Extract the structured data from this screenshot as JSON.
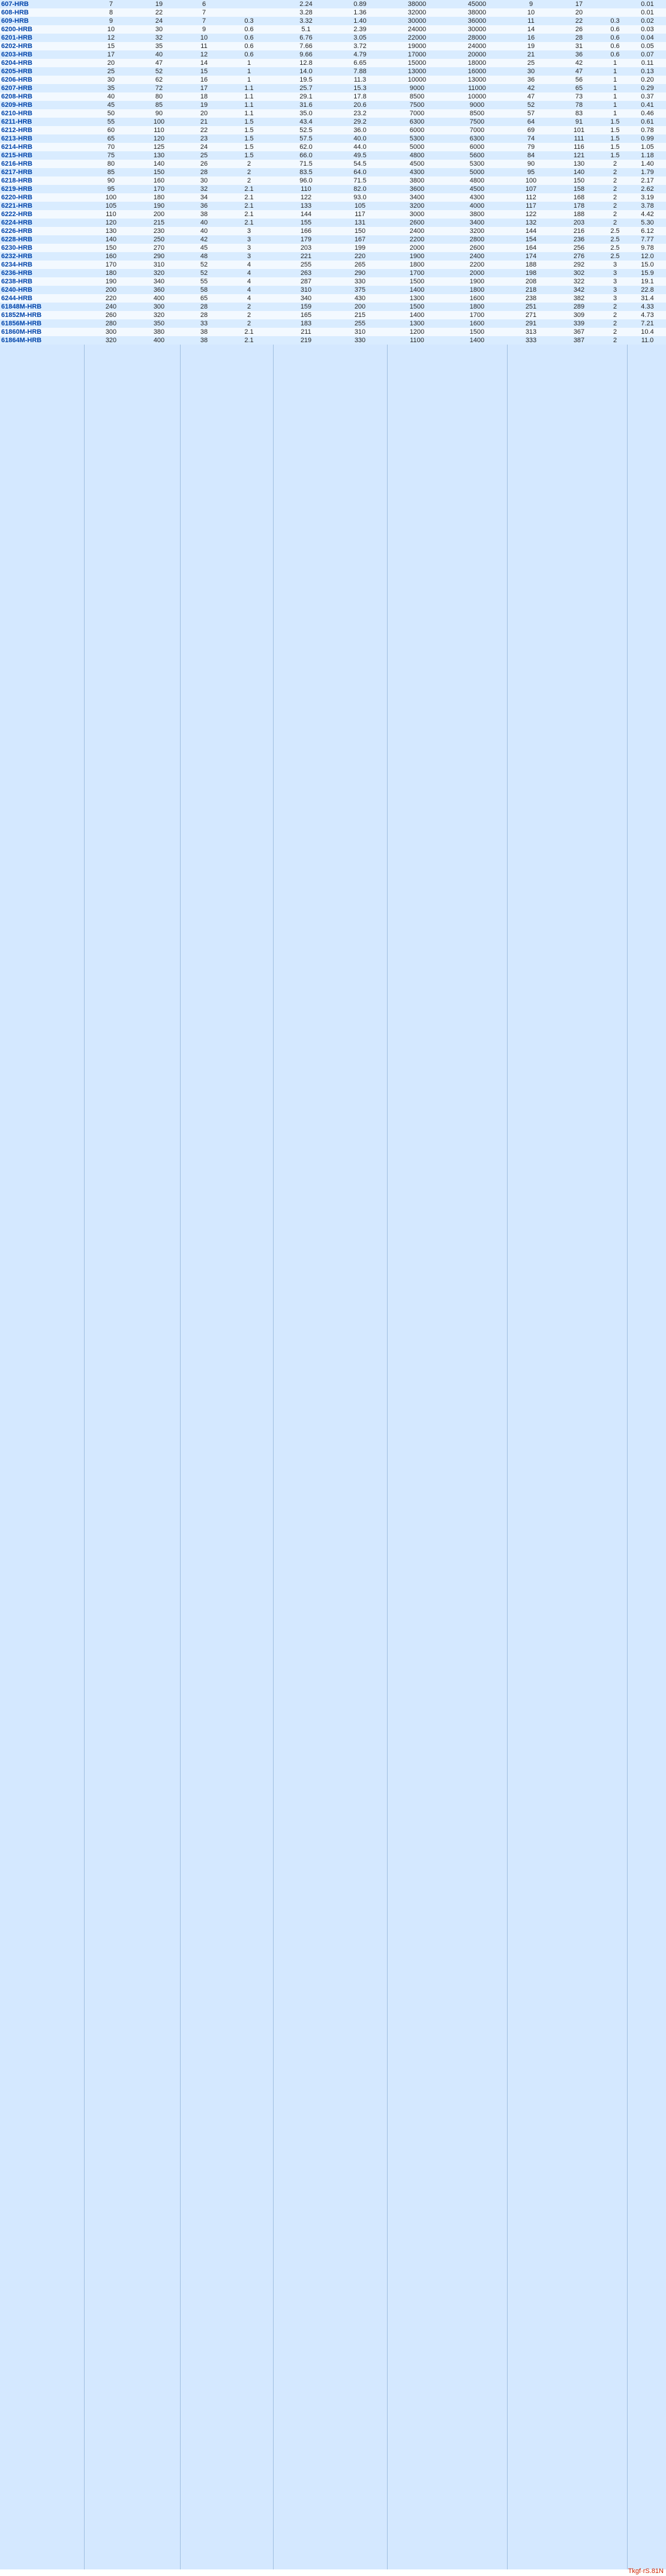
{
  "footer": {
    "watermark": "Tkgf·rS.81N"
  },
  "rows": [
    {
      "model": "607-HRB",
      "d": "7",
      "D": "19",
      "B": "6",
      "r": "",
      "Cr": "2.24",
      "Cor": "0.89",
      "grease": "38000",
      "oil": "45000",
      "d1": "9",
      "D1": "17",
      "ra": "",
      "w": "0.01"
    },
    {
      "model": "608-HRB",
      "d": "8",
      "D": "22",
      "B": "7",
      "r": "",
      "Cr": "3.28",
      "Cor": "1.36",
      "grease": "32000",
      "oil": "38000",
      "d1": "10",
      "D1": "20",
      "ra": "",
      "w": "0.01"
    },
    {
      "model": "609-HRB",
      "d": "9",
      "D": "24",
      "B": "7",
      "r": "0.3",
      "Cr": "3.32",
      "Cor": "1.40",
      "grease": "30000",
      "oil": "36000",
      "d1": "11",
      "D1": "22",
      "ra": "0.3",
      "w": "0.02"
    },
    {
      "model": "6200-HRB",
      "d": "10",
      "D": "30",
      "B": "9",
      "r": "0.6",
      "Cr": "5.1",
      "Cor": "2.39",
      "grease": "24000",
      "oil": "30000",
      "d1": "14",
      "D1": "26",
      "ra": "0.6",
      "w": "0.03"
    },
    {
      "model": "6201-HRB",
      "d": "12",
      "D": "32",
      "B": "10",
      "r": "0.6",
      "Cr": "6.76",
      "Cor": "3.05",
      "grease": "22000",
      "oil": "28000",
      "d1": "16",
      "D1": "28",
      "ra": "0.6",
      "w": "0.04"
    },
    {
      "model": "6202-HRB",
      "d": "15",
      "D": "35",
      "B": "11",
      "r": "0.6",
      "Cr": "7.66",
      "Cor": "3.72",
      "grease": "19000",
      "oil": "24000",
      "d1": "19",
      "D1": "31",
      "ra": "0.6",
      "w": "0.05"
    },
    {
      "model": "6203-HRB",
      "d": "17",
      "D": "40",
      "B": "12",
      "r": "0.6",
      "Cr": "9.66",
      "Cor": "4.79",
      "grease": "17000",
      "oil": "20000",
      "d1": "21",
      "D1": "36",
      "ra": "0.6",
      "w": "0.07"
    },
    {
      "model": "6204-HRB",
      "d": "20",
      "D": "47",
      "B": "14",
      "r": "1",
      "Cr": "12.8",
      "Cor": "6.65",
      "grease": "15000",
      "oil": "18000",
      "d1": "25",
      "D1": "42",
      "ra": "1",
      "w": "0.11"
    },
    {
      "model": "6205-HRB",
      "d": "25",
      "D": "52",
      "B": "15",
      "r": "1",
      "Cr": "14.0",
      "Cor": "7.88",
      "grease": "13000",
      "oil": "16000",
      "d1": "30",
      "D1": "47",
      "ra": "1",
      "w": "0.13"
    },
    {
      "model": "6206-HRB",
      "d": "30",
      "D": "62",
      "B": "16",
      "r": "1",
      "Cr": "19.5",
      "Cor": "11.3",
      "grease": "10000",
      "oil": "13000",
      "d1": "36",
      "D1": "56",
      "ra": "1",
      "w": "0.20"
    },
    {
      "model": "6207-HRB",
      "d": "35",
      "D": "72",
      "B": "17",
      "r": "1.1",
      "Cr": "25.7",
      "Cor": "15.3",
      "grease": "9000",
      "oil": "11000",
      "d1": "42",
      "D1": "65",
      "ra": "1",
      "w": "0.29"
    },
    {
      "model": "6208-HRB",
      "d": "40",
      "D": "80",
      "B": "18",
      "r": "1.1",
      "Cr": "29.1",
      "Cor": "17.8",
      "grease": "8500",
      "oil": "10000",
      "d1": "47",
      "D1": "73",
      "ra": "1",
      "w": "0.37"
    },
    {
      "model": "6209-HRB",
      "d": "45",
      "D": "85",
      "B": "19",
      "r": "1.1",
      "Cr": "31.6",
      "Cor": "20.6",
      "grease": "7500",
      "oil": "9000",
      "d1": "52",
      "D1": "78",
      "ra": "1",
      "w": "0.41"
    },
    {
      "model": "6210-HRB",
      "d": "50",
      "D": "90",
      "B": "20",
      "r": "1.1",
      "Cr": "35.0",
      "Cor": "23.2",
      "grease": "7000",
      "oil": "8500",
      "d1": "57",
      "D1": "83",
      "ra": "1",
      "w": "0.46"
    },
    {
      "model": "6211-HRB",
      "d": "55",
      "D": "100",
      "B": "21",
      "r": "1.5",
      "Cr": "43.4",
      "Cor": "29.2",
      "grease": "6300",
      "oil": "7500",
      "d1": "64",
      "D1": "91",
      "ra": "1.5",
      "w": "0.61"
    },
    {
      "model": "6212-HRB",
      "d": "60",
      "D": "110",
      "B": "22",
      "r": "1.5",
      "Cr": "52.5",
      "Cor": "36.0",
      "grease": "6000",
      "oil": "7000",
      "d1": "69",
      "D1": "101",
      "ra": "1.5",
      "w": "0.78"
    },
    {
      "model": "6213-HRB",
      "d": "65",
      "D": "120",
      "B": "23",
      "r": "1.5",
      "Cr": "57.5",
      "Cor": "40.0",
      "grease": "5300",
      "oil": "6300",
      "d1": "74",
      "D1": "111",
      "ra": "1.5",
      "w": "0.99"
    },
    {
      "model": "6214-HRB",
      "d": "70",
      "D": "125",
      "B": "24",
      "r": "1.5",
      "Cr": "62.0",
      "Cor": "44.0",
      "grease": "5000",
      "oil": "6000",
      "d1": "79",
      "D1": "116",
      "ra": "1.5",
      "w": "1.05"
    },
    {
      "model": "6215-HRB",
      "d": "75",
      "D": "130",
      "B": "25",
      "r": "1.5",
      "Cr": "66.0",
      "Cor": "49.5",
      "grease": "4800",
      "oil": "5600",
      "d1": "84",
      "D1": "121",
      "ra": "1.5",
      "w": "1.18"
    },
    {
      "model": "6216-HRB",
      "d": "80",
      "D": "140",
      "B": "26",
      "r": "2",
      "Cr": "71.5",
      "Cor": "54.5",
      "grease": "4500",
      "oil": "5300",
      "d1": "90",
      "D1": "130",
      "ra": "2",
      "w": "1.40"
    },
    {
      "model": "6217-HRB",
      "d": "85",
      "D": "150",
      "B": "28",
      "r": "2",
      "Cr": "83.5",
      "Cor": "64.0",
      "grease": "4300",
      "oil": "5000",
      "d1": "95",
      "D1": "140",
      "ra": "2",
      "w": "1.79"
    },
    {
      "model": "6218-HRB",
      "d": "90",
      "D": "160",
      "B": "30",
      "r": "2",
      "Cr": "96.0",
      "Cor": "71.5",
      "grease": "3800",
      "oil": "4800",
      "d1": "100",
      "D1": "150",
      "ra": "2",
      "w": "2.17"
    },
    {
      "model": "6219-HRB",
      "d": "95",
      "D": "170",
      "B": "32",
      "r": "2.1",
      "Cr": "110",
      "Cor": "82.0",
      "grease": "3600",
      "oil": "4500",
      "d1": "107",
      "D1": "158",
      "ra": "2",
      "w": "2.62"
    },
    {
      "model": "6220-HRB",
      "d": "100",
      "D": "180",
      "B": "34",
      "r": "2.1",
      "Cr": "122",
      "Cor": "93.0",
      "grease": "3400",
      "oil": "4300",
      "d1": "112",
      "D1": "168",
      "ra": "2",
      "w": "3.19"
    },
    {
      "model": "6221-HRB",
      "d": "105",
      "D": "190",
      "B": "36",
      "r": "2.1",
      "Cr": "133",
      "Cor": "105",
      "grease": "3200",
      "oil": "4000",
      "d1": "117",
      "D1": "178",
      "ra": "2",
      "w": "3.78"
    },
    {
      "model": "6222-HRB",
      "d": "110",
      "D": "200",
      "B": "38",
      "r": "2.1",
      "Cr": "144",
      "Cor": "117",
      "grease": "3000",
      "oil": "3800",
      "d1": "122",
      "D1": "188",
      "ra": "2",
      "w": "4.42"
    },
    {
      "model": "6224-HRB",
      "d": "120",
      "D": "215",
      "B": "40",
      "r": "2.1",
      "Cr": "155",
      "Cor": "131",
      "grease": "2600",
      "oil": "3400",
      "d1": "132",
      "D1": "203",
      "ra": "2",
      "w": "5.30"
    },
    {
      "model": "6226-HRB",
      "d": "130",
      "D": "230",
      "B": "40",
      "r": "3",
      "Cr": "166",
      "Cor": "150",
      "grease": "2400",
      "oil": "3200",
      "d1": "144",
      "D1": "216",
      "ra": "2.5",
      "w": "6.12"
    },
    {
      "model": "6228-HRB",
      "d": "140",
      "D": "250",
      "B": "42",
      "r": "3",
      "Cr": "179",
      "Cor": "167",
      "grease": "2200",
      "oil": "2800",
      "d1": "154",
      "D1": "236",
      "ra": "2.5",
      "w": "7.77"
    },
    {
      "model": "6230-HRB",
      "d": "150",
      "D": "270",
      "B": "45",
      "r": "3",
      "Cr": "203",
      "Cor": "199",
      "grease": "2000",
      "oil": "2600",
      "d1": "164",
      "D1": "256",
      "ra": "2.5",
      "w": "9.78"
    },
    {
      "model": "6232-HRB",
      "d": "160",
      "D": "290",
      "B": "48",
      "r": "3",
      "Cr": "221",
      "Cor": "220",
      "grease": "1900",
      "oil": "2400",
      "d1": "174",
      "D1": "276",
      "ra": "2.5",
      "w": "12.0"
    },
    {
      "model": "6234-HRB",
      "d": "170",
      "D": "310",
      "B": "52",
      "r": "4",
      "Cr": "255",
      "Cor": "265",
      "grease": "1800",
      "oil": "2200",
      "d1": "188",
      "D1": "292",
      "ra": "3",
      "w": "15.0"
    },
    {
      "model": "6236-HRB",
      "d": "180",
      "D": "320",
      "B": "52",
      "r": "4",
      "Cr": "263",
      "Cor": "290",
      "grease": "1700",
      "oil": "2000",
      "d1": "198",
      "D1": "302",
      "ra": "3",
      "w": "15.9"
    },
    {
      "model": "6238-HRB",
      "d": "190",
      "D": "340",
      "B": "55",
      "r": "4",
      "Cr": "287",
      "Cor": "330",
      "grease": "1500",
      "oil": "1900",
      "d1": "208",
      "D1": "322",
      "ra": "3",
      "w": "19.1"
    },
    {
      "model": "6240-HRB",
      "d": "200",
      "D": "360",
      "B": "58",
      "r": "4",
      "Cr": "310",
      "Cor": "375",
      "grease": "1400",
      "oil": "1800",
      "d1": "218",
      "D1": "342",
      "ra": "3",
      "w": "22.8"
    },
    {
      "model": "6244-HRB",
      "d": "220",
      "D": "400",
      "B": "65",
      "r": "4",
      "Cr": "340",
      "Cor": "430",
      "grease": "1300",
      "oil": "1600",
      "d1": "238",
      "D1": "382",
      "ra": "3",
      "w": "31.4"
    },
    {
      "model": "61848M-HRB",
      "d": "240",
      "D": "300",
      "B": "28",
      "r": "2",
      "Cr": "159",
      "Cor": "200",
      "grease": "1500",
      "oil": "1800",
      "d1": "251",
      "D1": "289",
      "ra": "2",
      "w": "4.33"
    },
    {
      "model": "61852M-HRB",
      "d": "260",
      "D": "320",
      "B": "28",
      "r": "2",
      "Cr": "165",
      "Cor": "215",
      "grease": "1400",
      "oil": "1700",
      "d1": "271",
      "D1": "309",
      "ra": "2",
      "w": "4.73"
    },
    {
      "model": "61856M-HRB",
      "d": "280",
      "D": "350",
      "B": "33",
      "r": "2",
      "Cr": "183",
      "Cor": "255",
      "grease": "1300",
      "oil": "1600",
      "d1": "291",
      "D1": "339",
      "ra": "2",
      "w": "7.21"
    },
    {
      "model": "61860M-HRB",
      "d": "300",
      "D": "380",
      "B": "38",
      "r": "2.1",
      "Cr": "211",
      "Cor": "310",
      "grease": "1200",
      "oil": "1500",
      "d1": "313",
      "D1": "367",
      "ra": "2",
      "w": "10.4"
    },
    {
      "model": "61864M-HRB",
      "d": "320",
      "D": "400",
      "B": "38",
      "r": "2.1",
      "Cr": "219",
      "Cor": "330",
      "grease": "1100",
      "oil": "1400",
      "d1": "333",
      "D1": "387",
      "ra": "2",
      "w": "11.0"
    }
  ]
}
